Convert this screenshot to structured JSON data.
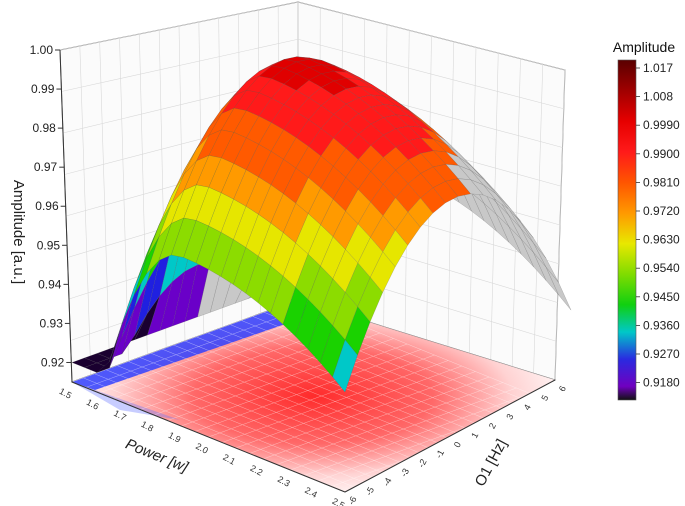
{
  "chart_data": {
    "type": "surface3d",
    "zlabel": "Amplitude [a.u.]",
    "xlabel": "Power [w]",
    "ylabel": "O1 [Hz]",
    "x_ticks": [
      "1.5",
      "1.6",
      "1.7",
      "1.8",
      "1.9",
      "2.0",
      "2.1",
      "2.2",
      "2.3",
      "2.4",
      "2.5"
    ],
    "y_ticks": [
      "-6",
      "-5",
      "-4",
      "-3",
      "-2",
      "-1",
      "0",
      "1",
      "2",
      "3",
      "4",
      "5",
      "6"
    ],
    "z_ticks": [
      "0.92",
      "0.93",
      "0.94",
      "0.95",
      "0.96",
      "0.97",
      "0.98",
      "0.99",
      "1.00"
    ],
    "xlim": [
      1.5,
      2.5
    ],
    "ylim": [
      -6,
      6
    ],
    "zlim": [
      0.915,
      1.0
    ],
    "surface_model": {
      "description_values": "Amplitude peaks near 0.998 around Power 1.9 W and O1 0 Hz; lowest about 0.92 at Power 1.5 W",
      "peak_amplitude": 0.998,
      "peak_power": 1.9,
      "peak_o1": 0.0,
      "min_amplitude": 0.92
    },
    "colorbar": {
      "title": "Amplitude",
      "labels": [
        "1.017",
        "1.008",
        "0.9990",
        "0.9900",
        "0.9810",
        "0.9720",
        "0.9630",
        "0.9540",
        "0.9450",
        "0.9360",
        "0.9270",
        "0.9180"
      ],
      "colors": [
        "#7a0000",
        "#a00000",
        "#e00000",
        "#ff1a1a",
        "#ff5a00",
        "#ff9a00",
        "#e6e600",
        "#8cdc00",
        "#1ad200",
        "#00c8c8",
        "#2020e0",
        "#6a00c8",
        "#1a0030"
      ]
    },
    "grid": true
  }
}
